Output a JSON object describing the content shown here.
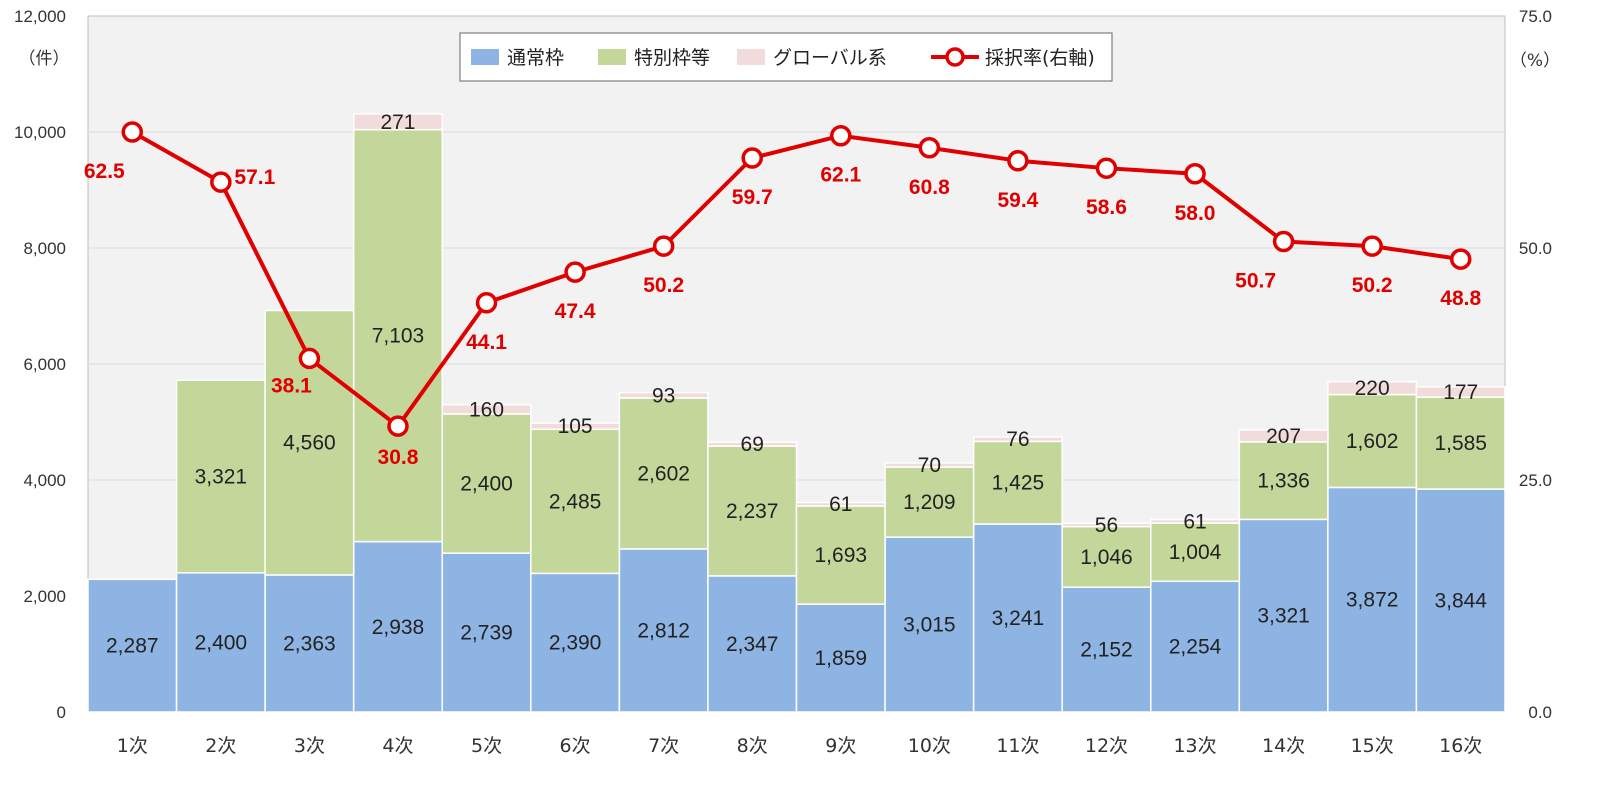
{
  "chart_data": {
    "type": "bar",
    "stacked": true,
    "categories": [
      "1次",
      "2次",
      "3次",
      "4次",
      "5次",
      "6次",
      "7次",
      "8次",
      "9次",
      "10次",
      "11次",
      "12次",
      "13次",
      "14次",
      "15次",
      "16次"
    ],
    "series": [
      {
        "name": "通常枠",
        "type": "bar",
        "color": "#8db4e2",
        "values": [
          2287,
          2400,
          2363,
          2938,
          2739,
          2390,
          2812,
          2347,
          1859,
          3015,
          3241,
          2152,
          2254,
          3321,
          3872,
          3844
        ]
      },
      {
        "name": "特別枠等",
        "type": "bar",
        "color": "#c4d79b",
        "values": [
          null,
          3321,
          4560,
          7103,
          2400,
          2485,
          2602,
          2237,
          1693,
          1209,
          1425,
          1046,
          1004,
          1336,
          1602,
          1585
        ]
      },
      {
        "name": "グローバル系",
        "type": "bar",
        "color": "#f2dcdb",
        "values": [
          null,
          null,
          null,
          271,
          160,
          105,
          93,
          69,
          61,
          70,
          76,
          56,
          61,
          207,
          220,
          177
        ]
      },
      {
        "name": "採択率(右軸)",
        "type": "line",
        "axis": "right",
        "color": "#e00000",
        "values": [
          62.5,
          57.1,
          38.1,
          30.8,
          44.1,
          47.4,
          50.2,
          59.7,
          62.1,
          60.8,
          59.4,
          58.6,
          58.0,
          50.7,
          50.2,
          48.8
        ]
      }
    ],
    "y_left": {
      "min": 0,
      "max": 12000,
      "ticks": [
        "0",
        "2,000",
        "4,000",
        "6,000",
        "8,000",
        "10,000",
        "12,000"
      ],
      "unit": "（件）"
    },
    "y_right": {
      "min": 0,
      "max": 75,
      "ticks": [
        "0.0",
        "25.0",
        "50.0",
        "75.0"
      ],
      "unit": "（%）"
    },
    "legend_position": "top-center",
    "grid": true
  }
}
